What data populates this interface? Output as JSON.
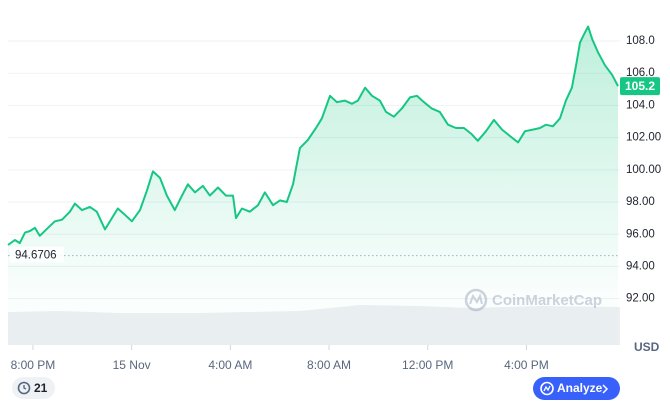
{
  "chart_data": {
    "type": "line",
    "x": [
      -1.01,
      -0.73,
      -0.53,
      -0.32,
      -0.12,
      0.08,
      0.28,
      0.61,
      0.89,
      1.18,
      1.5,
      1.7,
      1.99,
      2.31,
      2.59,
      2.92,
      3.2,
      3.44,
      3.73,
      4.01,
      4.34,
      4.62,
      4.86,
      5.15,
      5.43,
      5.75,
      6.04,
      6.28,
      6.57,
      6.89,
      7.17,
      7.5,
      7.82,
      8.11,
      8.23,
      8.47,
      8.79,
      9.12,
      9.4,
      9.73,
      10.01,
      10.29,
      10.54,
      10.82,
      11.14,
      11.47,
      11.71,
      12.04,
      12.32,
      12.64,
      12.93,
      13.17,
      13.46,
      13.74,
      14.06,
      14.31,
      14.63,
      14.95,
      15.28,
      15.56,
      15.85,
      16.17,
      16.49,
      16.82,
      17.14,
      17.47,
      17.79,
      18.03,
      18.36,
      18.68,
      19.01,
      19.33,
      19.66,
      19.94,
      20.26,
      20.55,
      20.79,
      21.07,
      21.36,
      21.6,
      21.84,
      22.01,
      22.17,
      22.33,
      22.5,
      22.67,
      22.9,
      23.18,
      23.47,
      23.71
    ],
    "values": [
      95.33,
      95.64,
      95.45,
      96.1,
      96.2,
      96.4,
      95.9,
      96.4,
      96.8,
      96.9,
      97.4,
      97.9,
      97.5,
      97.7,
      97.4,
      96.3,
      97.0,
      97.6,
      97.2,
      96.8,
      97.5,
      98.7,
      99.9,
      99.5,
      98.4,
      97.5,
      98.4,
      99.1,
      98.6,
      99.0,
      98.4,
      98.9,
      98.4,
      98.4,
      97.0,
      97.6,
      97.4,
      97.8,
      98.6,
      97.8,
      98.1,
      98.0,
      99.1,
      101.35,
      101.85,
      102.6,
      103.2,
      104.6,
      104.2,
      104.3,
      104.1,
      104.3,
      105.1,
      104.6,
      104.3,
      103.6,
      103.3,
      103.8,
      104.5,
      104.6,
      104.2,
      103.8,
      103.6,
      102.8,
      102.6,
      102.6,
      102.2,
      101.8,
      102.4,
      103.1,
      102.5,
      102.1,
      101.7,
      102.4,
      102.5,
      102.6,
      102.8,
      102.7,
      103.2,
      104.3,
      105.1,
      106.5,
      107.9,
      108.4,
      108.9,
      108.1,
      107.3,
      106.5,
      105.9,
      105.2
    ],
    "color": "#16c784",
    "xlim": [
      -1.01,
      23.71
    ],
    "xticks": [
      {
        "value": 0,
        "label": "8:00 PM"
      },
      {
        "value": 4,
        "label": "15 Nov"
      },
      {
        "value": 8,
        "label": "4:00 AM"
      },
      {
        "value": 12,
        "label": "8:00 AM"
      },
      {
        "value": 16,
        "label": "12:00 PM"
      },
      {
        "value": 20,
        "label": "4:00 PM"
      }
    ],
    "ylim": [
      89.12,
      110.05
    ],
    "yticks": [
      {
        "value": 92,
        "label": "92.00"
      },
      {
        "value": 94,
        "label": "94.00"
      },
      {
        "value": 96,
        "label": "96.00"
      },
      {
        "value": 98,
        "label": "98.00"
      },
      {
        "value": 100,
        "label": "100.00"
      },
      {
        "value": 102,
        "label": "102.00"
      },
      {
        "value": 104,
        "label": "104.0"
      },
      {
        "value": 106,
        "label": "106.0"
      },
      {
        "value": 108,
        "label": "108.0"
      }
    ],
    "grid": true,
    "reference_line": 94.6706,
    "last_price": 105.2,
    "currency": "USD",
    "watermark": "CoinMarketCap"
  },
  "buttons": {
    "history": "21",
    "analyze": "Analyze"
  }
}
